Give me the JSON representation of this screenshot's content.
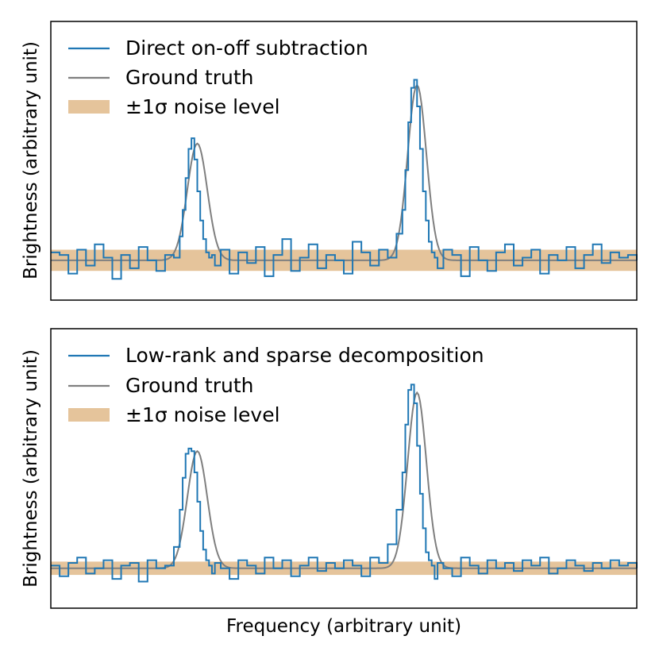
{
  "figure": {
    "xlabel": "Frequency (arbitrary unit)"
  },
  "chart_data": [
    {
      "type": "line",
      "panel": "top",
      "ylabel": "Brightness (arbitrary unit)",
      "xlim": [
        0,
        1
      ],
      "ylim": [
        -1.5,
        9.0
      ],
      "xticks": "none",
      "yticks": "none",
      "legend_position": "top-left",
      "noise_sigma": 0.4,
      "series": [
        {
          "name": "Direct on-off subtraction",
          "kind": "step",
          "color": "#1f77b4",
          "x": [
            0.0,
            0.015,
            0.03,
            0.045,
            0.06,
            0.075,
            0.09,
            0.105,
            0.12,
            0.135,
            0.15,
            0.165,
            0.18,
            0.195,
            0.21,
            0.22,
            0.225,
            0.23,
            0.235,
            0.24,
            0.245,
            0.25,
            0.255,
            0.26,
            0.265,
            0.27,
            0.275,
            0.28,
            0.29,
            0.305,
            0.32,
            0.335,
            0.35,
            0.365,
            0.38,
            0.395,
            0.41,
            0.425,
            0.44,
            0.455,
            0.47,
            0.485,
            0.5,
            0.515,
            0.53,
            0.545,
            0.56,
            0.575,
            0.59,
            0.6,
            0.605,
            0.61,
            0.615,
            0.62,
            0.625,
            0.63,
            0.635,
            0.64,
            0.645,
            0.65,
            0.655,
            0.66,
            0.67,
            0.685,
            0.7,
            0.715,
            0.73,
            0.745,
            0.76,
            0.775,
            0.79,
            0.805,
            0.82,
            0.835,
            0.85,
            0.865,
            0.88,
            0.895,
            0.91,
            0.925,
            0.94,
            0.955,
            0.97,
            0.985,
            1.0
          ],
          "y": [
            0.3,
            0.2,
            -0.5,
            0.4,
            -0.2,
            0.6,
            0.1,
            -0.7,
            0.2,
            -0.3,
            0.5,
            0.0,
            -0.4,
            0.2,
            0.1,
            0.9,
            1.9,
            3.1,
            4.2,
            4.6,
            3.8,
            2.6,
            1.5,
            0.8,
            0.3,
            0.1,
            0.2,
            -0.2,
            0.4,
            -0.5,
            0.3,
            -0.1,
            0.5,
            -0.6,
            0.2,
            0.8,
            -0.4,
            0.1,
            0.6,
            -0.3,
            0.2,
            0.0,
            -0.5,
            0.7,
            0.3,
            -0.2,
            0.4,
            0.1,
            1.0,
            1.9,
            3.4,
            5.2,
            6.5,
            6.8,
            5.8,
            4.2,
            2.6,
            1.5,
            0.7,
            0.3,
            0.1,
            -0.3,
            0.4,
            0.2,
            -0.6,
            0.5,
            0.0,
            -0.4,
            0.3,
            0.6,
            -0.2,
            0.1,
            0.4,
            -0.5,
            0.2,
            0.0,
            0.5,
            -0.3,
            0.2,
            0.6,
            -0.1,
            0.3,
            0.1,
            0.2,
            0.0
          ]
        },
        {
          "name": "Ground truth",
          "kind": "line",
          "color": "#7f7f7f",
          "gaussians": [
            {
              "center": 0.25,
              "width": 0.017,
              "amplitude": 4.4
            },
            {
              "center": 0.625,
              "width": 0.016,
              "amplitude": 6.6
            }
          ]
        },
        {
          "name": "±1σ noise level",
          "kind": "band",
          "color": "#e5c49b"
        }
      ]
    },
    {
      "type": "line",
      "panel": "bottom",
      "ylabel": "Brightness (arbitrary unit)",
      "xlim": [
        0,
        1
      ],
      "ylim": [
        -1.5,
        9.0
      ],
      "xticks": "none",
      "yticks": "none",
      "legend_position": "top-left",
      "noise_sigma": 0.25,
      "series": [
        {
          "name": "Low-rank and sparse decomposition",
          "kind": "step",
          "color": "#1f77b4",
          "x": [
            0.0,
            0.015,
            0.03,
            0.045,
            0.06,
            0.075,
            0.09,
            0.105,
            0.12,
            0.135,
            0.15,
            0.165,
            0.18,
            0.195,
            0.21,
            0.22,
            0.225,
            0.23,
            0.235,
            0.24,
            0.245,
            0.25,
            0.255,
            0.26,
            0.265,
            0.27,
            0.275,
            0.28,
            0.29,
            0.305,
            0.32,
            0.335,
            0.35,
            0.365,
            0.38,
            0.395,
            0.41,
            0.425,
            0.44,
            0.455,
            0.47,
            0.485,
            0.5,
            0.515,
            0.53,
            0.545,
            0.56,
            0.575,
            0.59,
            0.6,
            0.605,
            0.61,
            0.615,
            0.62,
            0.625,
            0.63,
            0.635,
            0.64,
            0.645,
            0.65,
            0.655,
            0.66,
            0.67,
            0.685,
            0.7,
            0.715,
            0.73,
            0.745,
            0.76,
            0.775,
            0.79,
            0.805,
            0.82,
            0.835,
            0.85,
            0.865,
            0.88,
            0.895,
            0.91,
            0.925,
            0.94,
            0.955,
            0.97,
            0.985,
            1.0
          ],
          "y": [
            0.1,
            -0.3,
            0.2,
            0.4,
            -0.2,
            0.0,
            0.3,
            -0.4,
            0.1,
            0.2,
            -0.5,
            0.3,
            0.0,
            0.1,
            0.8,
            2.2,
            3.4,
            4.3,
            4.5,
            4.4,
            3.6,
            2.5,
            1.4,
            0.7,
            0.3,
            0.1,
            -0.2,
            0.2,
            0.0,
            -0.4,
            0.3,
            0.1,
            -0.2,
            0.4,
            0.0,
            0.3,
            -0.3,
            0.1,
            0.4,
            -0.1,
            0.2,
            0.0,
            0.3,
            0.1,
            -0.3,
            0.4,
            0.2,
            0.9,
            2.2,
            3.6,
            5.4,
            6.7,
            6.9,
            6.2,
            4.6,
            2.8,
            1.5,
            0.6,
            0.3,
            0.1,
            -0.4,
            0.2,
            0.0,
            -0.3,
            0.4,
            0.1,
            -0.2,
            0.3,
            0.0,
            0.2,
            -0.1,
            0.3,
            0.1,
            0.4,
            -0.2,
            0.0,
            0.3,
            0.1,
            -0.1,
            0.2,
            0.0,
            0.3,
            0.1,
            0.2,
            0.0
          ]
        },
        {
          "name": "Ground truth",
          "kind": "line",
          "color": "#7f7f7f",
          "gaussians": [
            {
              "center": 0.25,
              "width": 0.017,
              "amplitude": 4.4
            },
            {
              "center": 0.625,
              "width": 0.016,
              "amplitude": 6.6
            }
          ]
        },
        {
          "name": "±1σ noise level",
          "kind": "band",
          "color": "#e5c49b"
        }
      ]
    }
  ]
}
